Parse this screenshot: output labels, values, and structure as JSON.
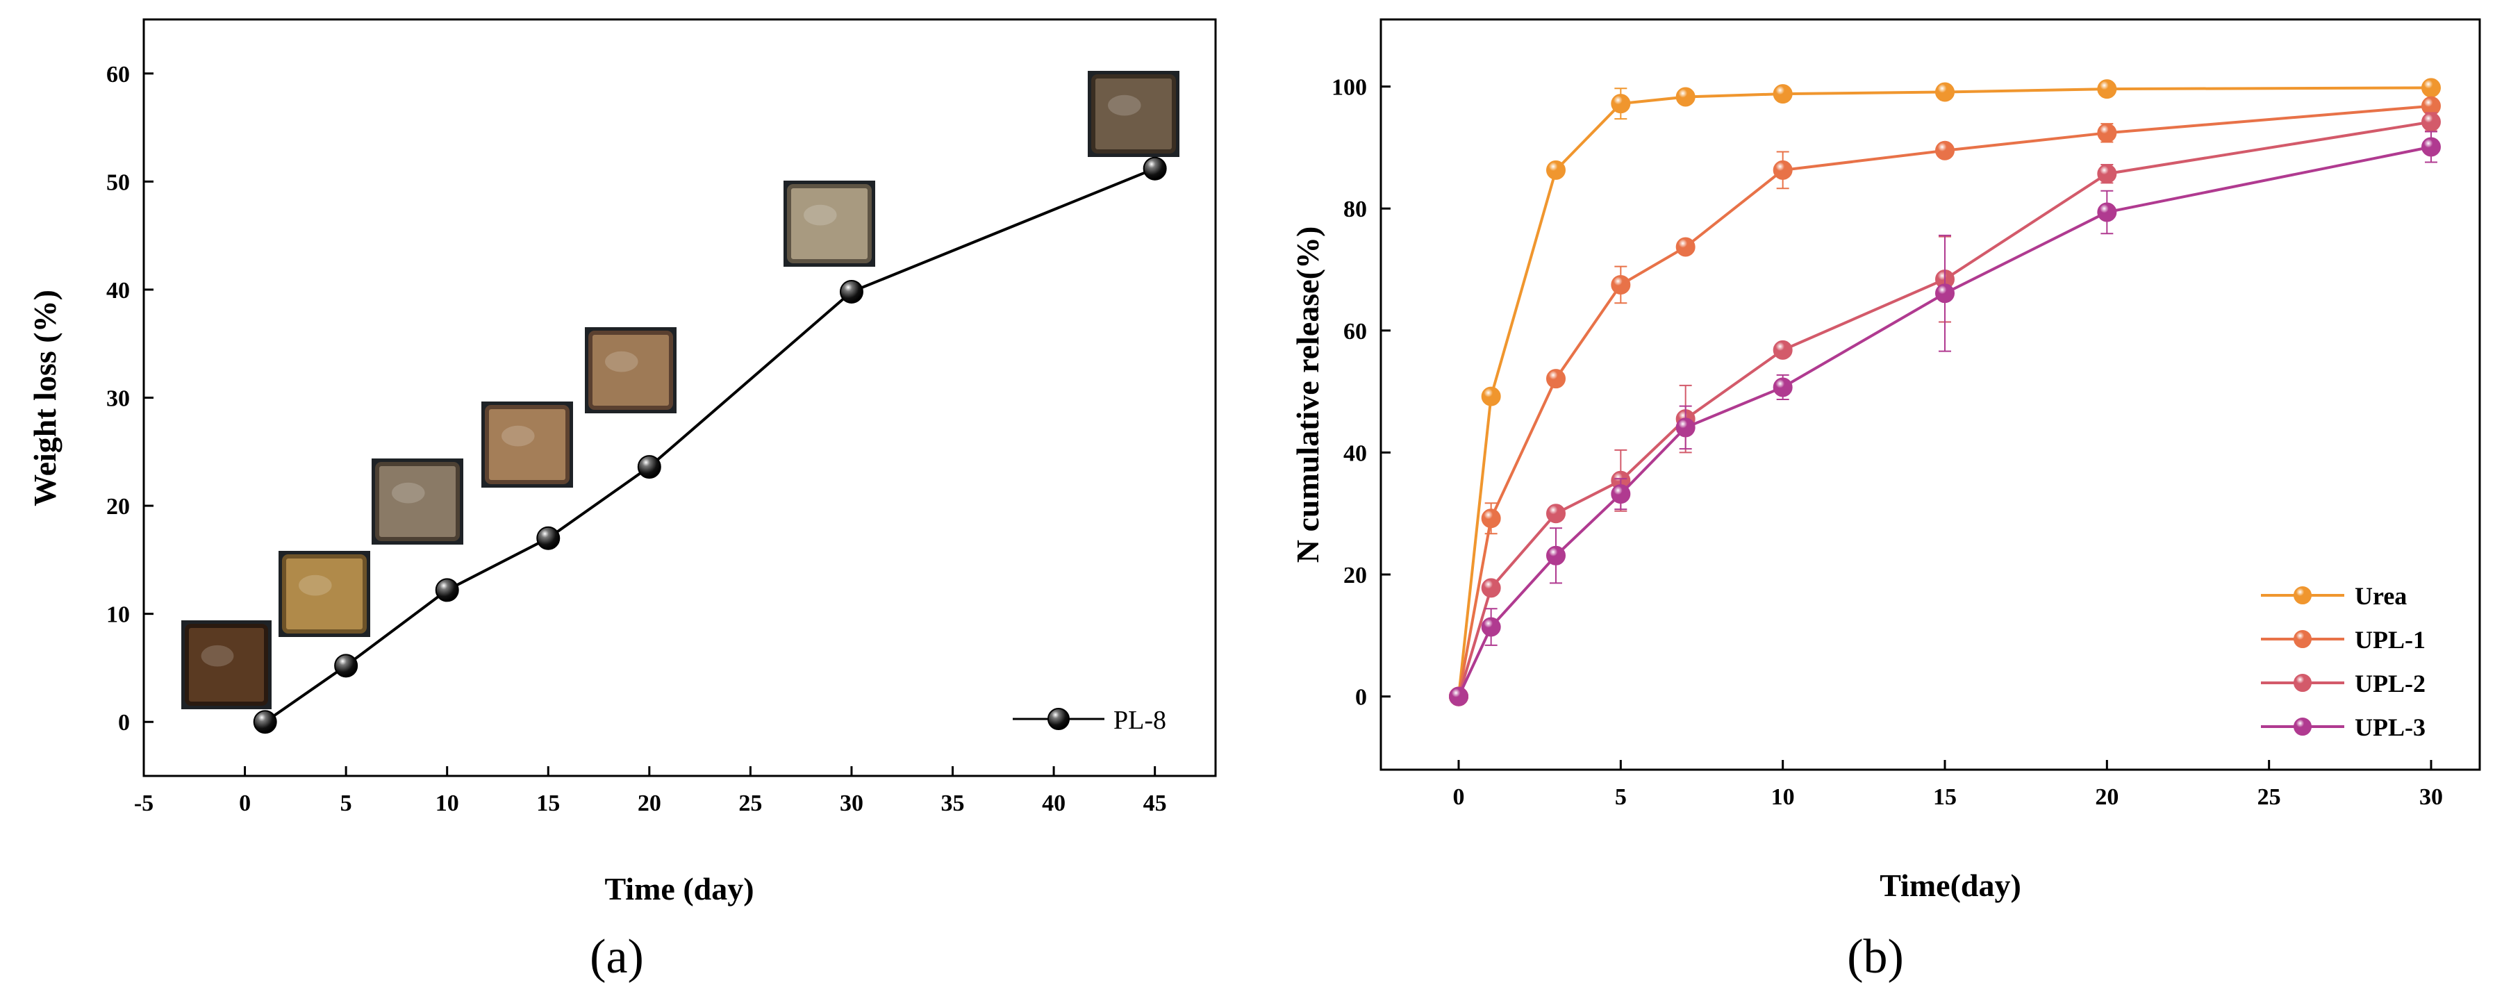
{
  "chart_data": [
    {
      "id": "a",
      "type": "line",
      "caption": "(a)",
      "xlabel": "Time (day)",
      "ylabel": "Weight loss (%)",
      "xlim": [
        -5,
        48
      ],
      "ylim": [
        -5,
        65
      ],
      "xticks": [
        -5,
        0,
        5,
        10,
        15,
        20,
        25,
        30,
        35,
        40,
        45
      ],
      "yticks": [
        0,
        10,
        20,
        30,
        40,
        50,
        60
      ],
      "legend_position": "bottom-right",
      "series": [
        {
          "name": "PL-8",
          "color": "#000000",
          "x": [
            1,
            5,
            10,
            15,
            20,
            30,
            45
          ],
          "y": [
            0,
            5.2,
            12.2,
            17,
            23.6,
            39.8,
            51.2
          ]
        }
      ],
      "sample_photos": [
        {
          "day": 1,
          "tone": "#5a3a22",
          "edge": "#2a1a10"
        },
        {
          "day": 5,
          "tone": "#b08a4a",
          "edge": "#6e5328"
        },
        {
          "day": 10,
          "tone": "#8a7a66",
          "edge": "#4c4033"
        },
        {
          "day": 15,
          "tone": "#a47e58",
          "edge": "#5d4230"
        },
        {
          "day": 20,
          "tone": "#9e7a56",
          "edge": "#5a4030"
        },
        {
          "day": 30,
          "tone": "#a89a80",
          "edge": "#5e5444"
        },
        {
          "day": 45,
          "tone": "#6e5c48",
          "edge": "#3a2e22"
        }
      ]
    },
    {
      "id": "b",
      "type": "line",
      "caption": "(b)",
      "xlabel": "Time(day)",
      "ylabel": "N cumulative release(%)",
      "xlim": [
        -2.4,
        31.5
      ],
      "ylim": [
        -12,
        111
      ],
      "xticks": [
        0,
        5,
        10,
        15,
        20,
        25,
        30
      ],
      "yticks": [
        0,
        20,
        40,
        60,
        80,
        100
      ],
      "legend_position": "bottom-right",
      "x": [
        0,
        1,
        3,
        5,
        7,
        10,
        15,
        20,
        30
      ],
      "series": [
        {
          "name": "Urea",
          "color": "#f0962e",
          "values": [
            0,
            49.2,
            86.3,
            97.2,
            98.3,
            98.8,
            99.1,
            99.6,
            99.8
          ],
          "errors": [
            0,
            0,
            0,
            2.5,
            1.0,
            0.5,
            0,
            0,
            0
          ]
        },
        {
          "name": "UPL-1",
          "color": "#e87248",
          "values": [
            0,
            29.2,
            52.1,
            67.5,
            73.7,
            86.3,
            89.5,
            92.4,
            96.8
          ],
          "errors": [
            0,
            2.5,
            0,
            3.0,
            0,
            3.0,
            0,
            1.5,
            1.0
          ]
        },
        {
          "name": "UPL-2",
          "color": "#d35a6a",
          "values": [
            0,
            17.8,
            30.0,
            35.4,
            45.5,
            56.8,
            68.4,
            85.7,
            94.2
          ],
          "errors": [
            0,
            0,
            0,
            5.0,
            5.5,
            0,
            7.0,
            1.5,
            1.5
          ]
        },
        {
          "name": "UPL-3",
          "color": "#b03a90",
          "values": [
            0,
            11.4,
            23.1,
            33.2,
            44.1,
            50.7,
            66.1,
            79.4,
            90.1
          ],
          "errors": [
            0,
            3.0,
            4.5,
            2.5,
            3.5,
            2.0,
            9.5,
            3.5,
            2.5
          ]
        }
      ]
    }
  ]
}
